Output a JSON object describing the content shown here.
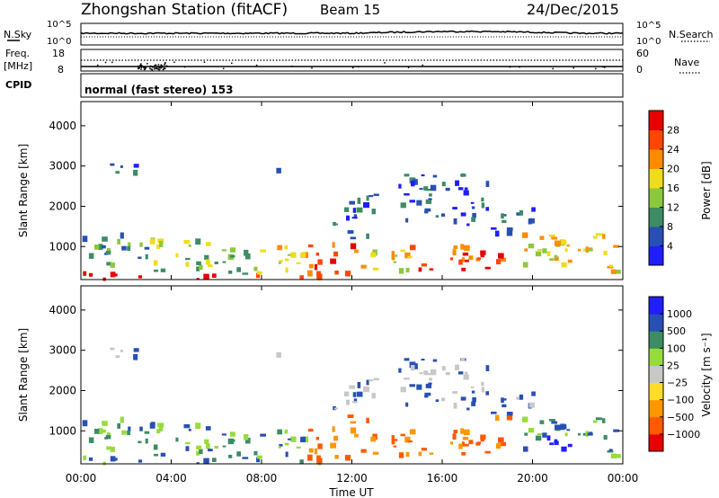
{
  "header": {
    "title": "Zhongshan Station (fitACF)",
    "beam": "Beam 15",
    "date": "24/Dec/2015"
  },
  "top_panels": {
    "noise_left_label": "N.Sky",
    "noise_right_label": "N.Search",
    "noise_ticks_left": [
      "10^5",
      "10^0"
    ],
    "noise_ticks_right": [
      "10^5",
      "10^0"
    ],
    "freq_label_1": "Freq.",
    "freq_label_2": "[MHz]",
    "freq_ticks": [
      "18",
      "8"
    ],
    "nave_label": "Nave",
    "nave_ticks": [
      "60",
      "0"
    ],
    "cpid_label": "CPID",
    "cpid_text": "normal (fast stereo) 153"
  },
  "colors": {
    "power": [
      "#1e1eff",
      "#2850b4",
      "#3c8c64",
      "#8cc83c",
      "#f0dc1e",
      "#ff8c00",
      "#ff4600",
      "#e60000"
    ],
    "velocity": [
      "#e60000",
      "#ff5a00",
      "#ff9600",
      "#ffdc28",
      "#c8c8c8",
      "#96dc3c",
      "#3c8c64",
      "#2850b4",
      "#1e1eff"
    ]
  },
  "chart_data": [
    {
      "type": "heatmap",
      "name": "power",
      "ylabel": "Slant Range [km]",
      "ylim": [
        180,
        4600
      ],
      "yticks": [
        "4000",
        "3000",
        "2000",
        "1000"
      ],
      "colorbar_label": "Power [dB]",
      "colorbar_ticks": [
        "28",
        "24",
        "20",
        "16",
        "12",
        "8",
        "4"
      ],
      "clim": [
        0,
        32
      ]
    },
    {
      "type": "heatmap",
      "name": "velocity",
      "ylabel": "Slant Range [km]",
      "ylim": [
        180,
        4600
      ],
      "yticks": [
        "4000",
        "3000",
        "2000",
        "1000"
      ],
      "colorbar_label": "Velocity [m s⁻¹]",
      "colorbar_ticks": [
        "1000",
        "500",
        "100",
        "25",
        "−25",
        "−100",
        "−500",
        "−1000"
      ],
      "clim": [
        -1000,
        1000
      ]
    }
  ],
  "xaxis": {
    "label": "Time UT",
    "ticks": [
      "00:00",
      "04:00",
      "08:00",
      "12:00",
      "16:00",
      "20:00",
      "00:00"
    ],
    "range_hours": [
      0,
      24
    ]
  }
}
